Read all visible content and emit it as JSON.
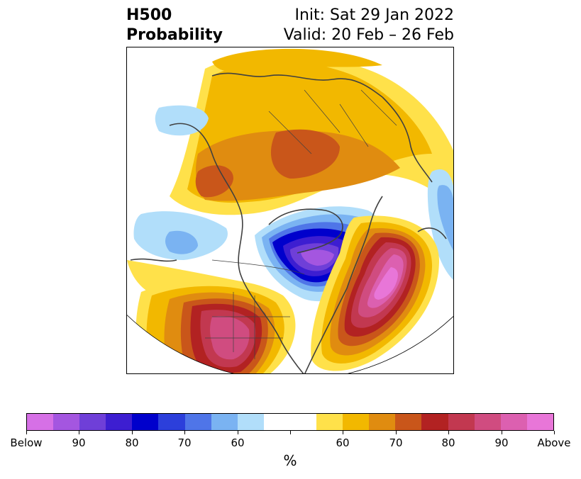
{
  "header": {
    "title_line1": "H500",
    "title_line2": "Probability",
    "init": "Init: Sat 29 Jan 2022",
    "valid": "Valid: 20 Feb – 26 Feb"
  },
  "colorbar": {
    "unit": "%",
    "colors": [
      "#d670e6",
      "#a456e0",
      "#6f3fd8",
      "#3d1ed1",
      "#0000cc",
      "#2c3fdb",
      "#4f75e8",
      "#7ab3f2",
      "#b1defa",
      "#ffffff",
      "#ffffff",
      "#ffe14a",
      "#f2b800",
      "#e08c10",
      "#c9561a",
      "#b22222",
      "#c23850",
      "#d04c80",
      "#dc60b0",
      "#e876d8"
    ],
    "labels": [
      "Below",
      "90",
      "80",
      "70",
      "60",
      "",
      "60",
      "70",
      "80",
      "90",
      "Above"
    ]
  },
  "map": {
    "region": "North America and Arctic, polar stereographic",
    "below_color": "#0000cc",
    "above_color": "#c23850"
  }
}
